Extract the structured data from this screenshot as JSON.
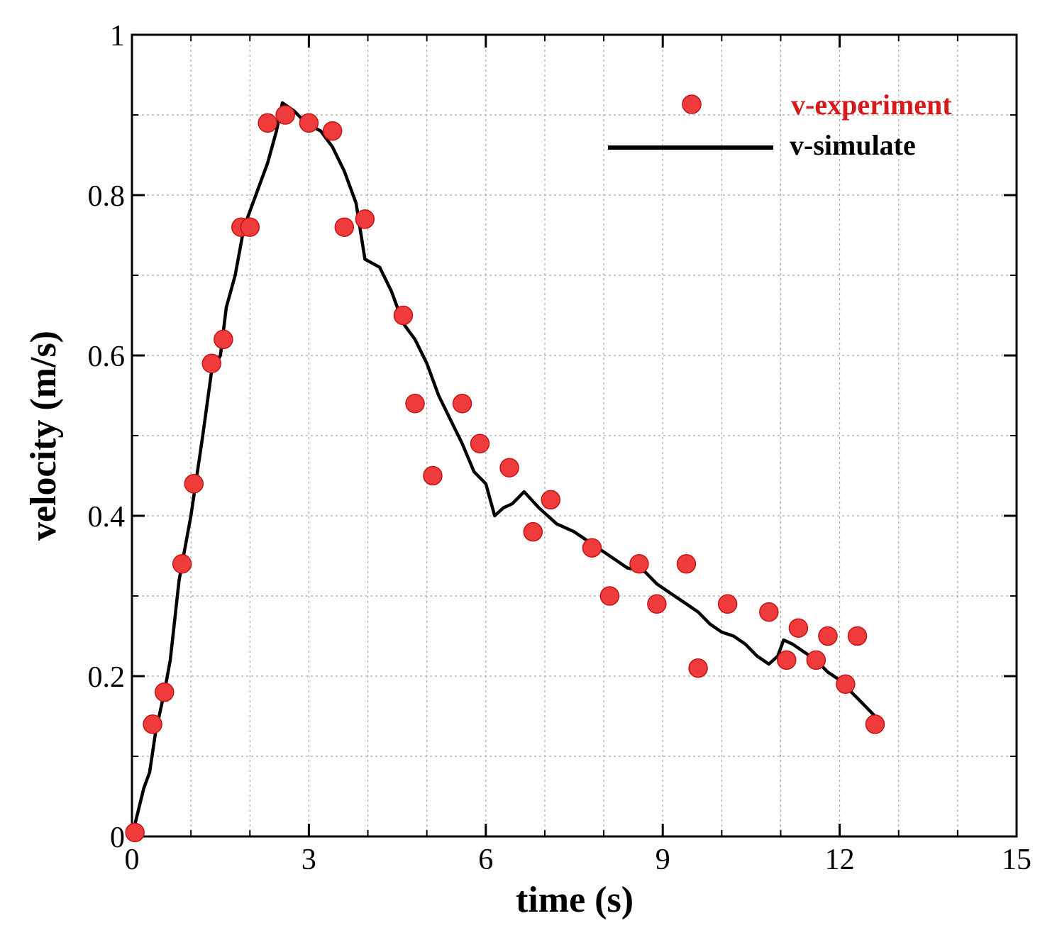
{
  "chart_data": {
    "type": "scatter+line",
    "xlabel": "time (s)",
    "ylabel": "velocity (m/s)",
    "xlim": [
      0,
      15
    ],
    "ylim": [
      0,
      1
    ],
    "x_ticks": [
      0,
      3,
      6,
      9,
      12,
      15
    ],
    "x_tick_labels": [
      "0",
      "3",
      "6",
      "9",
      "12",
      "15"
    ],
    "y_ticks": [
      0,
      0.2,
      0.4,
      0.6,
      0.8,
      1
    ],
    "y_tick_labels": [
      "0",
      "0.2",
      "0.4",
      "0.6",
      "0.8",
      "1"
    ],
    "grid": true,
    "legend_position": "top-right",
    "colors": {
      "experiment": "#ef3b3b",
      "experiment_label": "#d7191c",
      "simulate": "#000000"
    },
    "series": [
      {
        "name": "v-experiment",
        "kind": "scatter",
        "points": [
          [
            0.05,
            0.005
          ],
          [
            0.35,
            0.14
          ],
          [
            0.55,
            0.18
          ],
          [
            0.85,
            0.34
          ],
          [
            1.05,
            0.44
          ],
          [
            1.35,
            0.59
          ],
          [
            1.55,
            0.62
          ],
          [
            1.85,
            0.76
          ],
          [
            2.0,
            0.76
          ],
          [
            2.3,
            0.89
          ],
          [
            2.6,
            0.9
          ],
          [
            3.0,
            0.89
          ],
          [
            3.4,
            0.88
          ],
          [
            3.6,
            0.76
          ],
          [
            3.95,
            0.77
          ],
          [
            4.6,
            0.65
          ],
          [
            4.8,
            0.54
          ],
          [
            5.1,
            0.45
          ],
          [
            5.6,
            0.54
          ],
          [
            5.9,
            0.49
          ],
          [
            6.4,
            0.46
          ],
          [
            6.8,
            0.38
          ],
          [
            7.1,
            0.42
          ],
          [
            7.8,
            0.36
          ],
          [
            8.1,
            0.3
          ],
          [
            8.6,
            0.34
          ],
          [
            8.9,
            0.29
          ],
          [
            9.4,
            0.34
          ],
          [
            9.6,
            0.21
          ],
          [
            10.1,
            0.29
          ],
          [
            10.8,
            0.28
          ],
          [
            11.1,
            0.22
          ],
          [
            11.3,
            0.26
          ],
          [
            11.6,
            0.22
          ],
          [
            11.8,
            0.25
          ],
          [
            12.1,
            0.19
          ],
          [
            12.3,
            0.25
          ],
          [
            12.6,
            0.14
          ]
        ]
      },
      {
        "name": "v-simulate",
        "kind": "line",
        "points": [
          [
            0.0,
            0.0
          ],
          [
            0.1,
            0.03
          ],
          [
            0.2,
            0.06
          ],
          [
            0.3,
            0.08
          ],
          [
            0.4,
            0.13
          ],
          [
            0.55,
            0.18
          ],
          [
            0.65,
            0.22
          ],
          [
            0.8,
            0.32
          ],
          [
            1.0,
            0.4
          ],
          [
            1.2,
            0.5
          ],
          [
            1.35,
            0.58
          ],
          [
            1.5,
            0.6
          ],
          [
            1.6,
            0.66
          ],
          [
            1.75,
            0.7
          ],
          [
            1.9,
            0.76
          ],
          [
            2.1,
            0.8
          ],
          [
            2.3,
            0.84
          ],
          [
            2.45,
            0.88
          ],
          [
            2.55,
            0.915
          ],
          [
            2.75,
            0.905
          ],
          [
            2.95,
            0.89
          ],
          [
            3.2,
            0.88
          ],
          [
            3.4,
            0.86
          ],
          [
            3.6,
            0.83
          ],
          [
            3.8,
            0.79
          ],
          [
            3.95,
            0.72
          ],
          [
            4.2,
            0.71
          ],
          [
            4.4,
            0.68
          ],
          [
            4.6,
            0.64
          ],
          [
            4.8,
            0.62
          ],
          [
            5.0,
            0.59
          ],
          [
            5.2,
            0.55
          ],
          [
            5.4,
            0.52
          ],
          [
            5.6,
            0.49
          ],
          [
            5.8,
            0.455
          ],
          [
            6.0,
            0.44
          ],
          [
            6.15,
            0.4
          ],
          [
            6.3,
            0.41
          ],
          [
            6.45,
            0.415
          ],
          [
            6.65,
            0.43
          ],
          [
            6.9,
            0.41
          ],
          [
            7.2,
            0.39
          ],
          [
            7.5,
            0.38
          ],
          [
            7.7,
            0.37
          ],
          [
            7.9,
            0.36
          ],
          [
            8.2,
            0.345
          ],
          [
            8.4,
            0.335
          ],
          [
            8.7,
            0.33
          ],
          [
            8.9,
            0.315
          ],
          [
            9.1,
            0.305
          ],
          [
            9.4,
            0.29
          ],
          [
            9.6,
            0.28
          ],
          [
            9.8,
            0.265
          ],
          [
            10.0,
            0.255
          ],
          [
            10.2,
            0.25
          ],
          [
            10.4,
            0.24
          ],
          [
            10.6,
            0.225
          ],
          [
            10.8,
            0.215
          ],
          [
            10.95,
            0.225
          ],
          [
            11.05,
            0.245
          ],
          [
            11.2,
            0.24
          ],
          [
            11.4,
            0.23
          ],
          [
            11.6,
            0.22
          ],
          [
            11.8,
            0.205
          ],
          [
            12.0,
            0.195
          ],
          [
            12.2,
            0.18
          ],
          [
            12.4,
            0.165
          ],
          [
            12.6,
            0.15
          ]
        ]
      }
    ]
  }
}
